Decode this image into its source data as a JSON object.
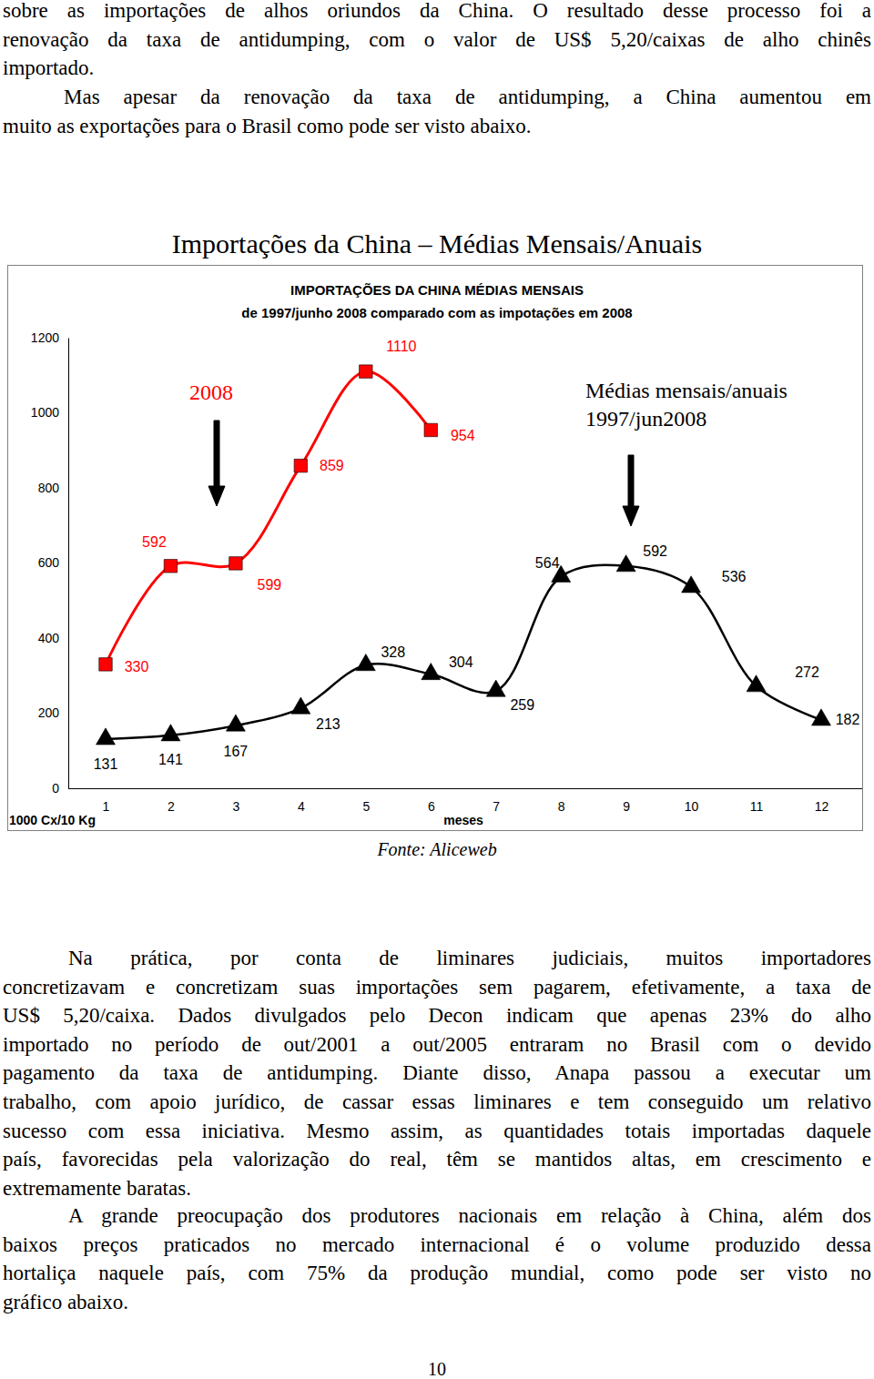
{
  "page": {
    "paragraphs": [
      [
        "sobre as importações de alhos oriundos da China. O resultado desse processo foi a",
        "renovação  da taxa de antidumping, com o valor de US$ 5,20/caixas de alho chinês",
        "importado."
      ],
      [
        "Mas apesar da renovação da taxa de antidumping, a China aumentou em",
        "muito as exportações para o Brasil como pode ser visto abaixo."
      ],
      [
        "Na prática, por conta de liminares judiciais, muitos importadores",
        "concretizavam e concretizam suas importações sem pagarem, efetivamente, a taxa de",
        "US$ 5,20/caixa. Dados divulgados pelo Decon indicam que apenas 23% do alho",
        "importado no período de out/2001 a out/2005 entraram no Brasil com o devido",
        "pagamento da taxa de antidumping. Diante disso, Anapa passou a executar um",
        "trabalho, com apoio jurídico, de cassar essas liminares e tem conseguido um relativo",
        "sucesso com essa iniciativa. Mesmo assim, as quantidades totais importadas daquele",
        "país, favorecidas pela valorização do real, têm se mantidos altas, em crescimento e",
        "extremamente baratas."
      ],
      [
        "A grande preocupação dos produtores nacionais em relação à China, além dos",
        "baixos preços praticados no mercado internacional é o volume produzido dessa",
        "hortaliça naquele país, com 75% da produção mundial, como pode ser visto no",
        "gráfico abaixo."
      ]
    ],
    "figure_title": "Importações da China – Médias Mensais/Anuais",
    "source": "Fonte: Aliceweb",
    "page_number": "10"
  },
  "chart_data": {
    "type": "line",
    "title": "IMPORTAÇÕES DA CHINA MÉDIAS MENSAIS",
    "subtitle": "de 1997/junho 2008 comparado com as impotações em 2008",
    "x_label": "meses",
    "y_label": "1000 Cx/10 Kg",
    "categories": [
      "1",
      "2",
      "3",
      "4",
      "5",
      "6",
      "7",
      "8",
      "9",
      "10",
      "11",
      "12"
    ],
    "series": [
      {
        "name": "2008",
        "color": "#ff0000",
        "marker": "square",
        "values": [
          330,
          592,
          599,
          859,
          1110,
          954,
          null,
          null,
          null,
          null,
          null,
          null
        ]
      },
      {
        "name": "Médias mensais/anuais 1997/jun2008",
        "color": "#000000",
        "marker": "triangle",
        "values": [
          131,
          141,
          167,
          213,
          328,
          304,
          259,
          564,
          592,
          536,
          272,
          182
        ]
      }
    ],
    "ylim": [
      0,
      1200
    ],
    "yticks": [
      0,
      200,
      400,
      600,
      800,
      1000,
      1200
    ],
    "grid": false,
    "data_labels": true
  }
}
